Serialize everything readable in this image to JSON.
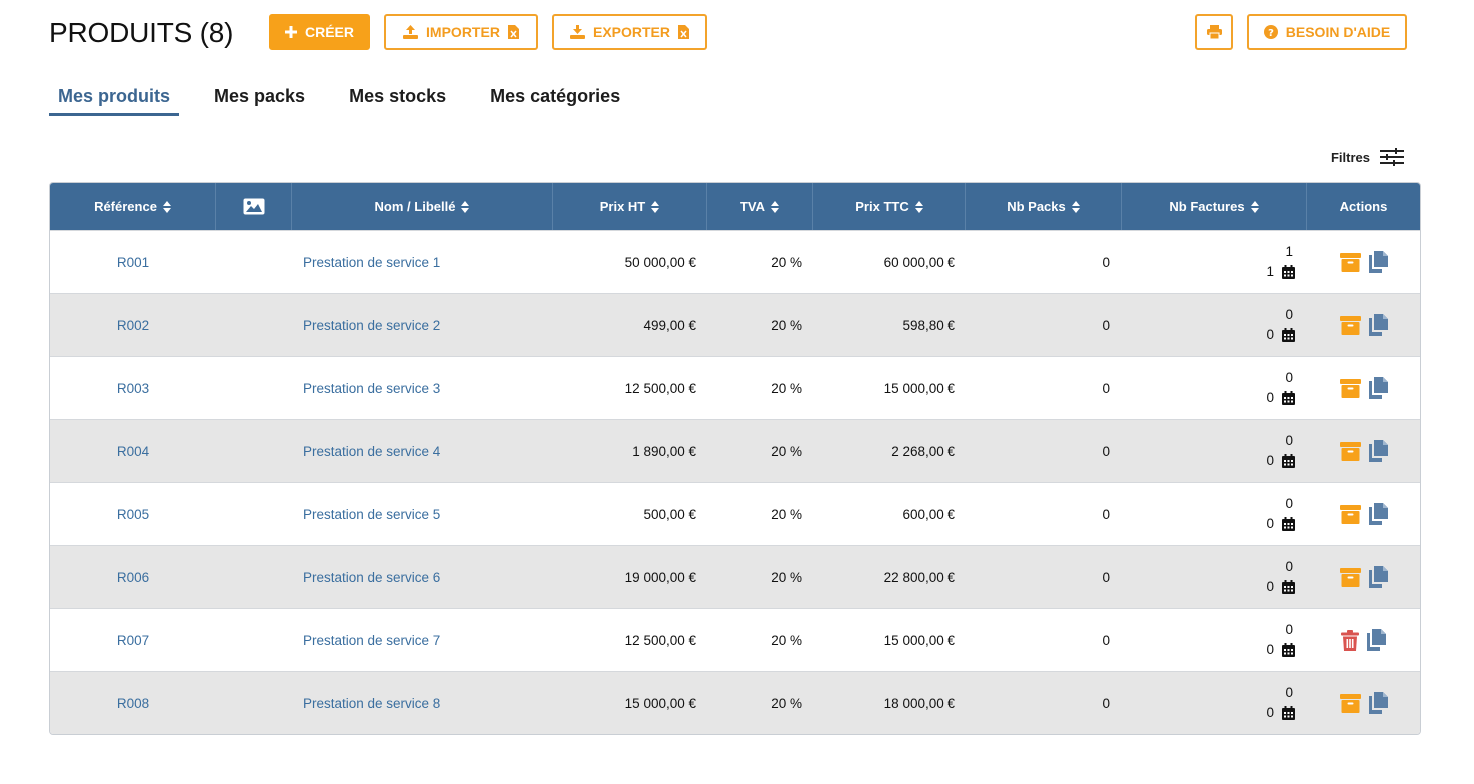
{
  "header": {
    "title": "PRODUITS (8)",
    "create_label": "CRÉER",
    "import_label": "IMPORTER",
    "export_label": "EXPORTER",
    "help_label": "BESOIN D'AIDE"
  },
  "tabs": [
    {
      "label": "Mes produits",
      "active": true
    },
    {
      "label": "Mes packs",
      "active": false
    },
    {
      "label": "Mes stocks",
      "active": false
    },
    {
      "label": "Mes catégories",
      "active": false
    }
  ],
  "filters_label": "Filtres",
  "table": {
    "columns": {
      "reference": "Référence",
      "name": "Nom / Libellé",
      "price_ht": "Prix HT",
      "tva": "TVA",
      "price_ttc": "Prix TTC",
      "nb_packs": "Nb Packs",
      "nb_factures": "Nb Factures",
      "actions": "Actions"
    },
    "rows": [
      {
        "ref": "R001",
        "name": "Prestation de service 1",
        "ht": "50 000,00 €",
        "tva": "20 %",
        "ttc": "60 000,00 €",
        "packs": "0",
        "fact_top": "1",
        "fact_bot": "1",
        "action": "archive-icon"
      },
      {
        "ref": "R002",
        "name": "Prestation de service 2",
        "ht": "499,00 €",
        "tva": "20 %",
        "ttc": "598,80 €",
        "packs": "0",
        "fact_top": "0",
        "fact_bot": "0",
        "action": "archive-icon"
      },
      {
        "ref": "R003",
        "name": "Prestation de service 3",
        "ht": "12 500,00 €",
        "tva": "20 %",
        "ttc": "15 000,00 €",
        "packs": "0",
        "fact_top": "0",
        "fact_bot": "0",
        "action": "archive-icon"
      },
      {
        "ref": "R004",
        "name": "Prestation de service 4",
        "ht": "1 890,00 €",
        "tva": "20 %",
        "ttc": "2 268,00 €",
        "packs": "0",
        "fact_top": "0",
        "fact_bot": "0",
        "action": "archive-icon"
      },
      {
        "ref": "R005",
        "name": "Prestation de service 5",
        "ht": "500,00 €",
        "tva": "20 %",
        "ttc": "600,00 €",
        "packs": "0",
        "fact_top": "0",
        "fact_bot": "0",
        "action": "archive-icon"
      },
      {
        "ref": "R006",
        "name": "Prestation de service 6",
        "ht": "19 000,00 €",
        "tva": "20 %",
        "ttc": "22 800,00 €",
        "packs": "0",
        "fact_top": "0",
        "fact_bot": "0",
        "action": "archive-icon"
      },
      {
        "ref": "R007",
        "name": "Prestation de service 7",
        "ht": "12 500,00 €",
        "tva": "20 %",
        "ttc": "15 000,00 €",
        "packs": "0",
        "fact_top": "0",
        "fact_bot": "0",
        "action": "trash-icon"
      },
      {
        "ref": "R008",
        "name": "Prestation de service 8",
        "ht": "15 000,00 €",
        "tva": "20 %",
        "ttc": "18 000,00 €",
        "packs": "0",
        "fact_top": "0",
        "fact_bot": "0",
        "action": "archive-icon"
      }
    ]
  },
  "colors": {
    "accent_orange": "#f7a11a",
    "header_blue": "#3e6a96",
    "link_blue": "#3a6e9f",
    "copy_icon": "#5b7fa6",
    "trash_red": "#d9534f",
    "row_alt": "#e6e6e6"
  }
}
